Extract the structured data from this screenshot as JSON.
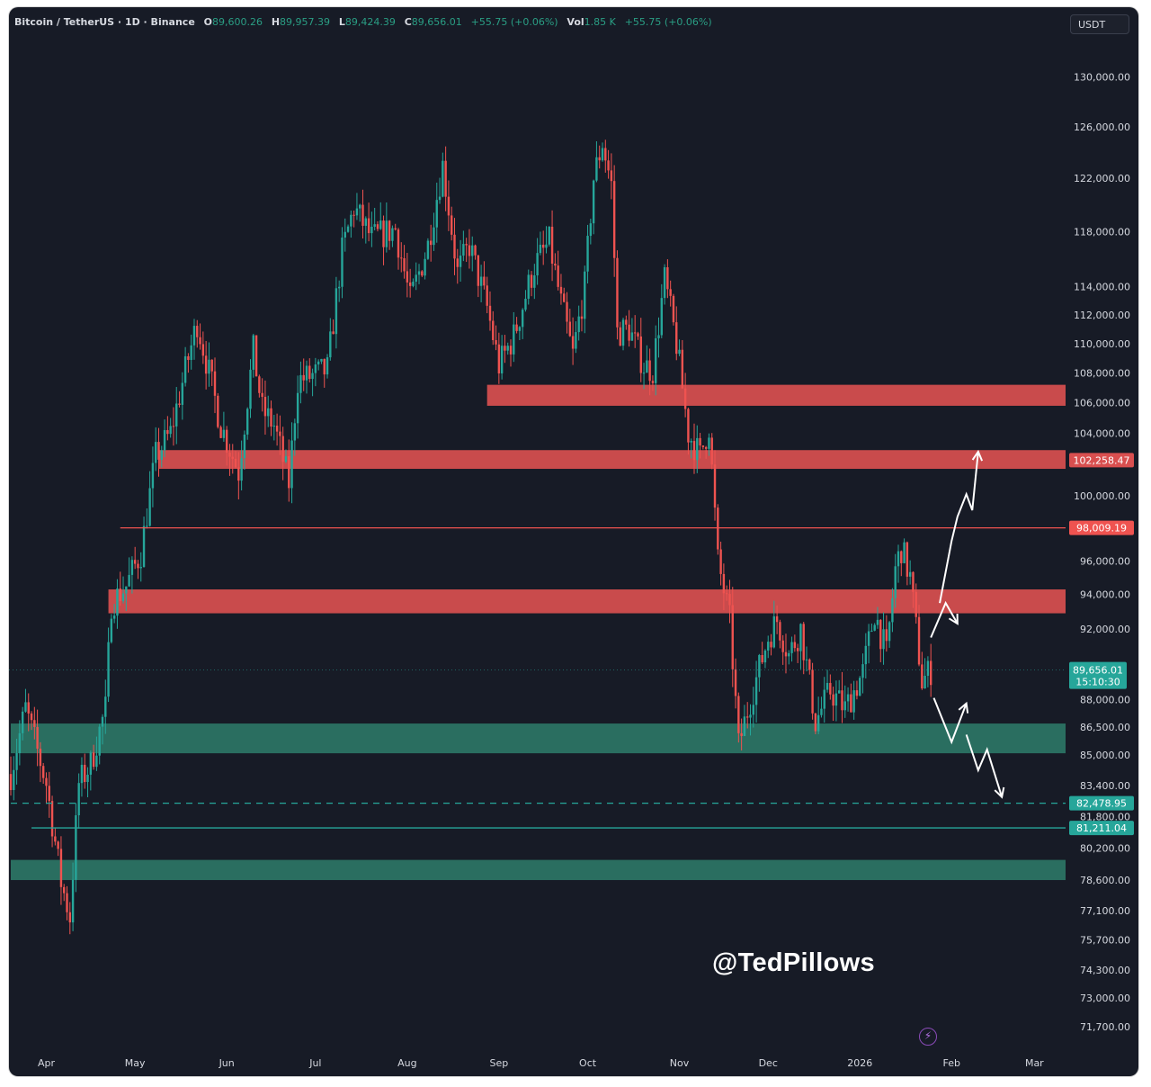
{
  "header": {
    "symbol": "Bitcoin / TetherUS · 1D · Binance",
    "open_label": "O",
    "open": "89,600.26",
    "high_label": "H",
    "high": "89,957.39",
    "low_label": "L",
    "low": "89,424.39",
    "close_label": "C",
    "close": "89,656.01",
    "change": "+55.75 (+0.06%)",
    "vol_label": "Vol",
    "vol": "1.85 K",
    "vol_change": "+55.75 (+0.06%)"
  },
  "currency_button": "USDT",
  "watermark": "@TedPillows",
  "last_price_badge": {
    "price": "89,656.01",
    "countdown": "15:10:30"
  },
  "colors": {
    "background": "#171b26",
    "up": "#26a69a",
    "down": "#ef5350",
    "resistance_zone": "#d94f4f",
    "support_zone": "#2e7d6b",
    "axis_text": "#d6d9e0",
    "arrows": "#ffffff"
  },
  "chart_data": {
    "type": "candlestick",
    "title": "",
    "x_axis": {
      "ticks": [
        "Apr",
        "May",
        "Jun",
        "Jul",
        "Aug",
        "Sep",
        "Oct",
        "Nov",
        "Dec",
        "2026",
        "Feb",
        "Mar"
      ]
    },
    "y_axis": {
      "ticks": [
        "130,000.00",
        "126,000.00",
        "122,000.00",
        "118,000.00",
        "114,000.00",
        "112,000.00",
        "110,000.00",
        "108,000.00",
        "106,000.00",
        "104,000.00",
        "100,000.00",
        "96,000.00",
        "94,000.00",
        "92,000.00",
        "88,000.00",
        "86,500.00",
        "85,000.00",
        "83,400.00",
        "81,800.00",
        "80,200.00",
        "78,600.00",
        "77,100.00",
        "75,700.00",
        "74,300.00",
        "73,000.00",
        "71,700.00"
      ],
      "scale": "log",
      "range": [
        70500,
        133000
      ]
    },
    "price_path": [
      [
        "2025-03-20",
        84000
      ],
      [
        "2025-03-25",
        87500
      ],
      [
        "2025-04-01",
        83500
      ],
      [
        "2025-04-06",
        78500
      ],
      [
        "2025-04-09",
        76800
      ],
      [
        "2025-04-12",
        83500
      ],
      [
        "2025-04-16",
        84500
      ],
      [
        "2025-04-21",
        87500
      ],
      [
        "2025-04-23",
        93500
      ],
      [
        "2025-04-28",
        94500
      ],
      [
        "2025-05-03",
        96500
      ],
      [
        "2025-05-08",
        102500
      ],
      [
        "2025-05-13",
        104000
      ],
      [
        "2025-05-22",
        111500
      ],
      [
        "2025-05-30",
        104500
      ],
      [
        "2025-06-05",
        101500
      ],
      [
        "2025-06-10",
        109500
      ],
      [
        "2025-06-13",
        105500
      ],
      [
        "2025-06-17",
        104500
      ],
      [
        "2025-06-22",
        100800
      ],
      [
        "2025-06-25",
        107500
      ],
      [
        "2025-06-30",
        107800
      ],
      [
        "2025-07-05",
        108200
      ],
      [
        "2025-07-10",
        116500
      ],
      [
        "2025-07-14",
        119800
      ],
      [
        "2025-07-20",
        117500
      ],
      [
        "2025-07-28",
        118200
      ],
      [
        "2025-08-02",
        113000
      ],
      [
        "2025-08-08",
        117000
      ],
      [
        "2025-08-13",
        123000
      ],
      [
        "2025-08-18",
        115000
      ],
      [
        "2025-08-22",
        117000
      ],
      [
        "2025-08-28",
        112500
      ],
      [
        "2025-09-01",
        108500
      ],
      [
        "2025-09-06",
        110500
      ],
      [
        "2025-09-13",
        115500
      ],
      [
        "2025-09-18",
        117200
      ],
      [
        "2025-09-22",
        112800
      ],
      [
        "2025-09-26",
        109200
      ],
      [
        "2025-09-30",
        114000
      ],
      [
        "2025-10-03",
        122000
      ],
      [
        "2025-10-06",
        124800
      ],
      [
        "2025-10-09",
        121500
      ],
      [
        "2025-10-11",
        110800
      ],
      [
        "2025-10-15",
        111000
      ],
      [
        "2025-10-20",
        108500
      ],
      [
        "2025-10-23",
        108200
      ],
      [
        "2025-10-27",
        114500
      ],
      [
        "2025-10-31",
        110000
      ],
      [
        "2025-11-04",
        104000
      ],
      [
        "2025-11-08",
        102500
      ],
      [
        "2025-11-11",
        104500
      ],
      [
        "2025-11-14",
        96000
      ],
      [
        "2025-11-18",
        92500
      ],
      [
        "2025-11-21",
        85500
      ],
      [
        "2025-11-25",
        88000
      ],
      [
        "2025-12-01",
        91500
      ],
      [
        "2025-12-04",
        92500
      ],
      [
        "2025-12-08",
        90500
      ],
      [
        "2025-12-12",
        92000
      ],
      [
        "2025-12-17",
        86800
      ],
      [
        "2025-12-22",
        88500
      ],
      [
        "2025-12-27",
        87500
      ],
      [
        "2026-01-02",
        89500
      ],
      [
        "2026-01-06",
        93000
      ],
      [
        "2026-01-10",
        90500
      ],
      [
        "2026-01-13",
        95500
      ],
      [
        "2026-01-15",
        96800
      ],
      [
        "2026-01-18",
        95000
      ],
      [
        "2026-01-20",
        92000
      ],
      [
        "2026-01-22",
        89000
      ],
      [
        "2026-01-25",
        89656
      ]
    ],
    "zones": [
      {
        "kind": "resistance",
        "from": 105800,
        "to": 107200,
        "start": "2025-08-28"
      },
      {
        "kind": "resistance",
        "from": 101700,
        "to": 102900,
        "start": "2025-05-09"
      },
      {
        "kind": "resistance",
        "from": 92900,
        "to": 94300,
        "start": "2025-04-22"
      },
      {
        "kind": "support",
        "from": 85100,
        "to": 86700,
        "start": "2025-03-20"
      },
      {
        "kind": "support",
        "from": 78600,
        "to": 79600,
        "start": "2025-03-20"
      }
    ],
    "levels": [
      {
        "value": 98009.19,
        "label": "98,009.19",
        "style": "solid",
        "color": "#ef5350",
        "start": "2025-04-26"
      },
      {
        "value": 102258.47,
        "label": "102,258.47",
        "style": "badge",
        "color": "#d94f4f"
      },
      {
        "value": 82478.95,
        "label": "82,478.95",
        "style": "dashed",
        "color": "#26a69a",
        "start": "2025-03-20"
      },
      {
        "value": 81211.04,
        "label": "81,211.04",
        "style": "solid",
        "color": "#26a69a",
        "start": "2025-03-27"
      }
    ],
    "last_price": 89656.01,
    "scenario_paths": [
      {
        "name": "bullish",
        "points": [
          [
            "2026-01-25",
            91500
          ],
          [
            "2026-01-30",
            93500
          ],
          [
            "2026-02-03",
            92300
          ]
        ]
      },
      {
        "name": "bullish",
        "points": [
          [
            "2026-01-28",
            93500
          ],
          [
            "2026-02-01",
            97200
          ],
          [
            "2026-02-03",
            98700
          ],
          [
            "2026-02-06",
            100100
          ],
          [
            "2026-02-08",
            99100
          ],
          [
            "2026-02-10",
            102800
          ]
        ]
      },
      {
        "name": "bearish",
        "points": [
          [
            "2026-01-26",
            88100
          ],
          [
            "2026-02-01",
            85700
          ],
          [
            "2026-02-06",
            87800
          ]
        ]
      },
      {
        "name": "bearish",
        "points": [
          [
            "2026-02-06",
            86100
          ],
          [
            "2026-02-10",
            84200
          ],
          [
            "2026-02-13",
            85300
          ],
          [
            "2026-02-18",
            82800
          ]
        ]
      }
    ]
  }
}
